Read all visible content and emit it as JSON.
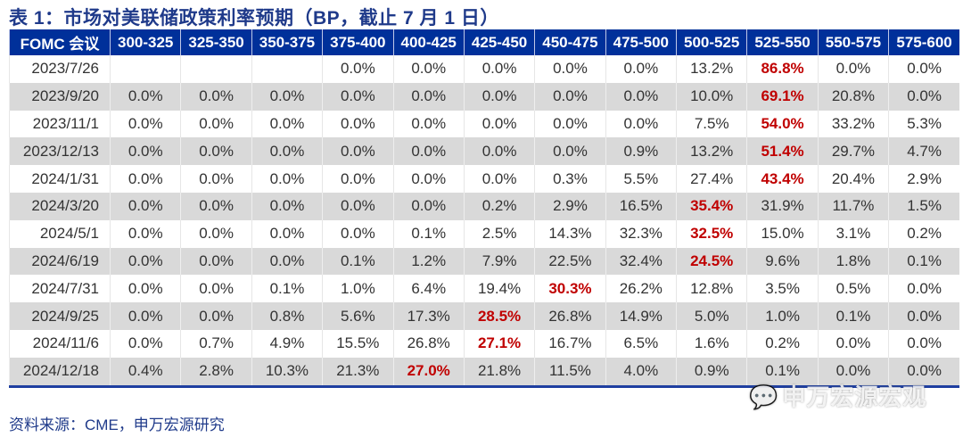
{
  "title": "表 1：市场对美联储政策利率预期（BP，截止 7 月 1 日）",
  "columns": [
    "FOMC 会议",
    "300-325",
    "325-350",
    "350-375",
    "375-400",
    "400-425",
    "425-450",
    "450-475",
    "475-500",
    "500-525",
    "525-550",
    "550-575",
    "575-600"
  ],
  "rows": [
    {
      "date": "2023/7/26",
      "values": [
        "",
        "",
        "",
        "0.0%",
        "0.0%",
        "0.0%",
        "0.0%",
        "0.0%",
        "13.2%",
        "86.8%",
        "0.0%",
        "0.0%"
      ],
      "highlight": 9
    },
    {
      "date": "2023/9/20",
      "values": [
        "0.0%",
        "0.0%",
        "0.0%",
        "0.0%",
        "0.0%",
        "0.0%",
        "0.0%",
        "0.0%",
        "10.0%",
        "69.1%",
        "20.8%",
        "0.0%"
      ],
      "highlight": 9
    },
    {
      "date": "2023/11/1",
      "values": [
        "0.0%",
        "0.0%",
        "0.0%",
        "0.0%",
        "0.0%",
        "0.0%",
        "0.0%",
        "0.0%",
        "7.5%",
        "54.0%",
        "33.2%",
        "5.3%"
      ],
      "highlight": 9
    },
    {
      "date": "2023/12/13",
      "values": [
        "0.0%",
        "0.0%",
        "0.0%",
        "0.0%",
        "0.0%",
        "0.0%",
        "0.0%",
        "0.9%",
        "13.2%",
        "51.4%",
        "29.7%",
        "4.7%"
      ],
      "highlight": 9
    },
    {
      "date": "2024/1/31",
      "values": [
        "0.0%",
        "0.0%",
        "0.0%",
        "0.0%",
        "0.0%",
        "0.0%",
        "0.3%",
        "5.5%",
        "27.4%",
        "43.4%",
        "20.4%",
        "2.9%"
      ],
      "highlight": 9
    },
    {
      "date": "2024/3/20",
      "values": [
        "0.0%",
        "0.0%",
        "0.0%",
        "0.0%",
        "0.0%",
        "0.2%",
        "2.9%",
        "16.5%",
        "35.4%",
        "31.9%",
        "11.7%",
        "1.5%"
      ],
      "highlight": 8
    },
    {
      "date": "2024/5/1",
      "values": [
        "0.0%",
        "0.0%",
        "0.0%",
        "0.0%",
        "0.1%",
        "2.5%",
        "14.3%",
        "32.3%",
        "32.5%",
        "15.0%",
        "3.1%",
        "0.2%"
      ],
      "highlight": 8
    },
    {
      "date": "2024/6/19",
      "values": [
        "0.0%",
        "0.0%",
        "0.1%",
        "1.2%",
        "7.9%",
        "22.5%",
        "32.4%",
        "24.5%",
        "9.6%",
        "1.8%",
        "0.1%"
      ],
      "highlight": 7,
      "shift": 1
    },
    {
      "date": "2024/7/31",
      "values": [
        "0.0%",
        "0.0%",
        "0.1%",
        "1.0%",
        "6.4%",
        "19.4%",
        "30.3%",
        "26.2%",
        "12.8%",
        "3.5%",
        "0.5%",
        "0.0%"
      ],
      "highlight": 6
    },
    {
      "date": "2024/9/25",
      "values": [
        "0.0%",
        "0.0%",
        "0.8%",
        "5.6%",
        "17.3%",
        "28.5%",
        "26.8%",
        "14.9%",
        "5.0%",
        "1.0%",
        "0.1%",
        "0.0%"
      ],
      "highlight": 5
    },
    {
      "date": "2024/11/6",
      "values": [
        "0.0%",
        "0.7%",
        "4.9%",
        "15.5%",
        "26.8%",
        "27.1%",
        "16.7%",
        "6.5%",
        "1.6%",
        "0.2%",
        "0.0%",
        "0.0%"
      ],
      "highlight": 5
    },
    {
      "date": "2024/12/18",
      "values": [
        "0.4%",
        "2.8%",
        "10.3%",
        "21.3%",
        "27.0%",
        "21.8%",
        "11.5%",
        "4.0%",
        "0.9%",
        "0.1%",
        "0.0%",
        "0.0%"
      ],
      "highlight": 4
    }
  ],
  "source": "资料来源：CME，申万宏源研究",
  "watermark": "申万宏源宏观",
  "colors": {
    "header": "#00309a",
    "highlight": "#c00000",
    "alt_row": "#d9d9d9"
  }
}
